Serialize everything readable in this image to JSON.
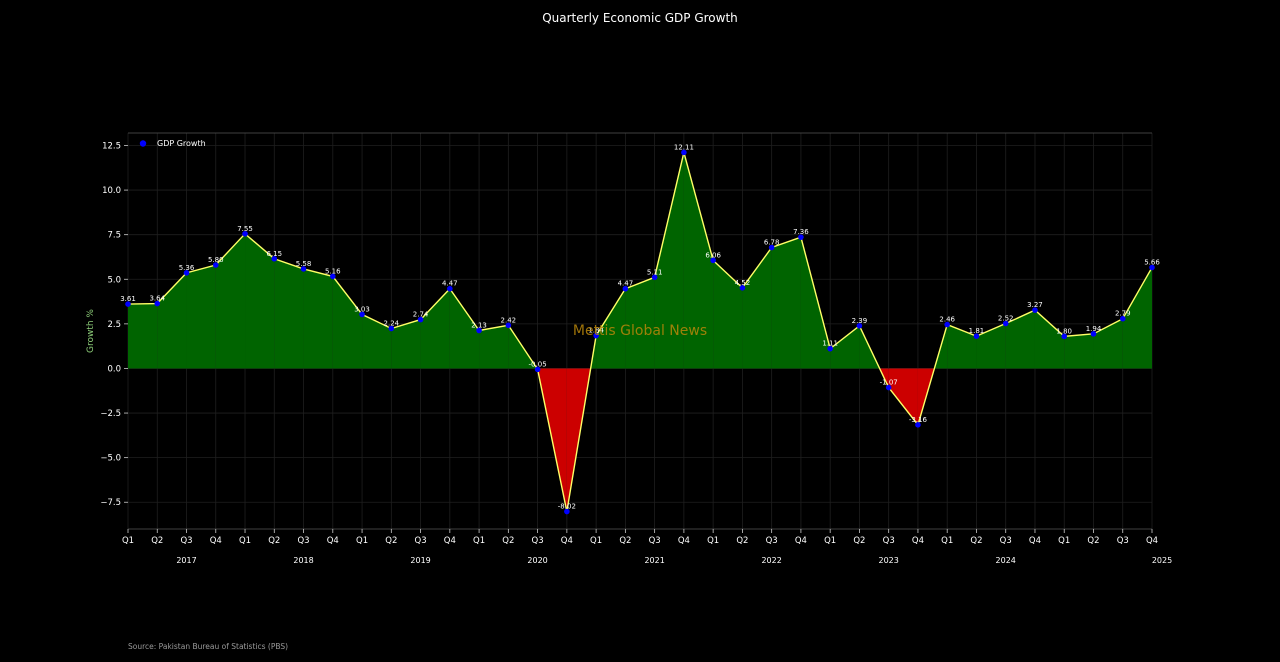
{
  "source": "Source: Pakistan Bureau of Statistics (PBS)",
  "watermark": "Mettis Global News",
  "colors": {
    "background": "#000000",
    "positive_fill": "#006400",
    "negative_fill": "#cc0000",
    "line": "#ffff66",
    "marker": "#0000ff",
    "ylabel": "#8fd07a"
  },
  "chart_data": {
    "type": "area",
    "title": "Quarterly Economic GDP Growth",
    "xlabel": "",
    "ylabel": "Growth %",
    "ylim": [
      -9,
      13.2
    ],
    "yticks": [
      12.5,
      10.0,
      7.5,
      5.0,
      2.5,
      0.0,
      -2.5,
      -5.0,
      -7.5
    ],
    "ytick_labels": [
      "12.5",
      "10.0",
      "7.5",
      "5.0",
      "2.5",
      "0.0",
      "−2.5",
      "−5.0",
      "−7.5"
    ],
    "grid": true,
    "legend": {
      "position": "top-left",
      "entries": [
        "GDP Growth"
      ]
    },
    "categories": [
      "Q1",
      "Q2",
      "Q3",
      "Q4",
      "Q1",
      "Q2",
      "Q3",
      "Q4",
      "Q1",
      "Q2",
      "Q3",
      "Q4",
      "Q1",
      "Q2",
      "Q3",
      "Q4",
      "Q1",
      "Q2",
      "Q3",
      "Q4",
      "Q1",
      "Q2",
      "Q3",
      "Q4",
      "Q1",
      "Q2",
      "Q3",
      "Q4",
      "Q1",
      "Q2",
      "Q3",
      "Q4",
      "Q1",
      "Q2",
      "Q3",
      "Q4"
    ],
    "year_labels": [
      {
        "index": 3,
        "label": "2017"
      },
      {
        "index": 7,
        "label": "2018"
      },
      {
        "index": 11,
        "label": "2019"
      },
      {
        "index": 15,
        "label": "2020"
      },
      {
        "index": 19,
        "label": "2021"
      },
      {
        "index": 23,
        "label": "2022"
      },
      {
        "index": 27,
        "label": "2023"
      },
      {
        "index": 31,
        "label": "2024"
      },
      {
        "index": 35,
        "label": "2025"
      }
    ],
    "series": [
      {
        "name": "GDP Growth",
        "values": [
          3.61,
          3.64,
          5.36,
          5.8,
          7.55,
          6.15,
          5.58,
          5.16,
          3.03,
          2.24,
          2.74,
          4.47,
          2.13,
          2.42,
          -0.05,
          -8.02,
          1.84,
          4.47,
          5.11,
          12.11,
          6.06,
          4.52,
          6.78,
          7.36,
          1.11,
          2.39,
          -1.07,
          -3.16,
          2.46,
          1.81,
          2.52,
          3.27,
          1.8,
          1.94,
          2.79,
          5.66
        ],
        "labels": [
          "3.61",
          "3.64",
          "5.36",
          "5.80",
          "7.55",
          "6.15",
          "5.58",
          "5.16",
          "3.03",
          "2.24",
          "2.74",
          "4.47",
          "2.13",
          "2.42",
          "-0.05",
          "-8.02",
          "1.84",
          "4.47",
          "5.11",
          "12.11",
          "6.06",
          "4.52",
          "6.78",
          "7.36",
          "1.11",
          "2.39",
          "-1.07",
          "-3.16",
          "2.46",
          "1.81",
          "2.52",
          "3.27",
          "1.80",
          "1.94",
          "2.79",
          "5.66"
        ]
      }
    ]
  }
}
